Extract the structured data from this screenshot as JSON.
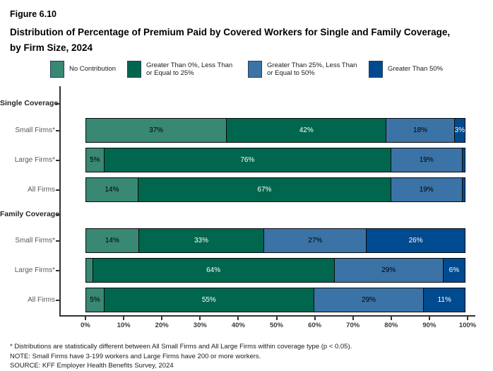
{
  "figure": {
    "label": "Figure 6.10",
    "title": "Distribution of Percentage of Premium Paid by Covered Workers for Single and Family Coverage, by Firm Size, 2024"
  },
  "colors": {
    "no_contribution": "#398873",
    "gt0_le25": "#00664E",
    "gt25_le50": "#3C73A6",
    "gt50": "#004A8F",
    "axis": "#333333"
  },
  "chart_data": {
    "type": "bar",
    "stacked": true,
    "orientation": "horizontal",
    "xlim": [
      0,
      100
    ],
    "x_ticks": [
      "0%",
      "10%",
      "20%",
      "30%",
      "40%",
      "50%",
      "60%",
      "70%",
      "80%",
      "90%",
      "100%"
    ],
    "grid": false,
    "legend_position": "top",
    "series_meta": [
      {
        "name": "No Contribution",
        "color": "#398873",
        "label_color": "#000000"
      },
      {
        "name": "Greater Than 0%, Less Than or Equal to 25%",
        "color": "#00664E",
        "label_color": "#ffffff"
      },
      {
        "name": "Greater Than 25%, Less Than or Equal to 50%",
        "color": "#3C73A6",
        "label_color": "#000000"
      },
      {
        "name": "Greater Than 50%",
        "color": "#004A8F",
        "label_color": "#ffffff"
      }
    ],
    "groups": [
      {
        "header": "Single Coverage",
        "rows": [
          {
            "label": "Small Firms*",
            "values": [
              37,
              42,
              18,
              3
            ],
            "value_labels": [
              "37%",
              "42%",
              "18%",
              "3%"
            ]
          },
          {
            "label": "Large Firms*",
            "values": [
              5,
              76,
              19,
              1
            ],
            "value_labels": [
              "5%",
              "76%",
              "19%",
              ""
            ]
          },
          {
            "label": "All Firms",
            "values": [
              14,
              67,
              19,
              1
            ],
            "value_labels": [
              "14%",
              "67%",
              "19%",
              ""
            ]
          }
        ]
      },
      {
        "header": "Family Coverage",
        "rows": [
          {
            "label": "Small Firms*",
            "values": [
              14,
              33,
              27,
              26
            ],
            "value_labels": [
              "14%",
              "33%",
              "27%",
              "26%"
            ]
          },
          {
            "label": "Large Firms*",
            "values": [
              2,
              64,
              29,
              6
            ],
            "value_labels": [
              "",
              "64%",
              "29%",
              "6%"
            ]
          },
          {
            "label": "All Firms",
            "values": [
              5,
              55,
              29,
              11
            ],
            "value_labels": [
              "5%",
              "55%",
              "29%",
              "11%"
            ]
          }
        ]
      }
    ]
  },
  "footnotes": [
    "* Distributions are statistically different between All Small Firms and All Large Firms within coverage type (p < 0.05).",
    "NOTE: Small Firms have 3-199 workers and Large Firms have 200 or more workers.",
    "SOURCE: KFF Employer Health Benefits Survey, 2024"
  ]
}
